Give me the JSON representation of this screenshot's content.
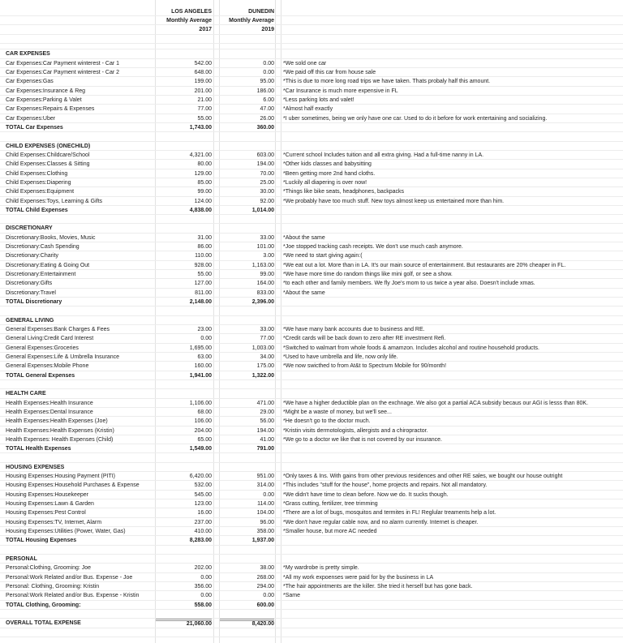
{
  "header": {
    "la": {
      "city": "LOS ANGELES",
      "label": "Monthly Average",
      "year": "2017"
    },
    "dunedin": {
      "city": "DUNEDIN",
      "label": "Monthly Average",
      "year": "2019"
    }
  },
  "sections": [
    {
      "title": "CAR EXPENSES",
      "items": [
        {
          "label": "Car Expenses:Car Payment winterest - Car 1",
          "la": "542.00",
          "dunedin": "0.00",
          "note": "*We sold one car"
        },
        {
          "label": "Car Expenses:Car Payment winterest - Car 2",
          "la": "648.00",
          "dunedin": "0.00",
          "note": "*We paid off this car from house sale"
        },
        {
          "label": "Car Expenses:Gas",
          "la": "199.00",
          "dunedin": "95.00",
          "note": "*This is due to more long road trips we have taken. Thats probaly half this amount."
        },
        {
          "label": "Car Expenses:Insurance & Reg",
          "la": "201.00",
          "dunedin": "186.00",
          "note": "*Car Insurance is much more expensive in FL"
        },
        {
          "label": "Car Expenses:Parking & Valet",
          "la": "21.00",
          "dunedin": "6.00",
          "note": "*Less parking lots and valet!"
        },
        {
          "label": "Car Expenses:Repairs & Expenses",
          "la": "77.00",
          "dunedin": "47.00",
          "note": "*Almost half exactly"
        },
        {
          "label": "Car Expenses:Uber",
          "la": "55.00",
          "dunedin": "26.00",
          "note": "*I uber sometimes, being we only have one car. Used to do it before for work entertaining and socializing."
        }
      ],
      "total": {
        "label": "TOTAL Car Expenses",
        "la": "1,743.00",
        "dunedin": "360.00"
      }
    },
    {
      "title": "CHILD EXPENSES (ONECHILD)",
      "items": [
        {
          "label": "Child Expenses:Childcare/School",
          "la": "4,321.00",
          "dunedin": "603.00",
          "note": "*Current school Includes tuition and all extra giving. Had a full-time nanny in LA."
        },
        {
          "label": "Child Expenses:Classes & Sitting",
          "la": "80.00",
          "dunedin": "194.00",
          "note": "*Other kids classes and babysitting"
        },
        {
          "label": "Child Expenses:Clothing",
          "la": "129.00",
          "dunedin": "70.00",
          "note": "*Been getting more 2nd hand cloths."
        },
        {
          "label": "Child Expenses:Diapering",
          "la": "85.00",
          "dunedin": "25.00",
          "note": "*Luckily all diapering is over now!"
        },
        {
          "label": "Child Expenses:Equipment",
          "la": "99.00",
          "dunedin": "30.00",
          "note": "*Things like bike seats, headphones, backpacks"
        },
        {
          "label": "Child Expenses:Toys, Learning & Gifts",
          "la": "124.00",
          "dunedin": "92.00",
          "note": "*We probably have too much stuff. New toys almost keep us entertained more than him."
        }
      ],
      "total": {
        "label": "TOTAL Child Expenses",
        "la": "4,838.00",
        "dunedin": "1,014.00"
      }
    },
    {
      "title": "DISCRETIONARY",
      "items": [
        {
          "label": "Discretionary:Books, Movies, Music",
          "la": "31.00",
          "dunedin": "33.00",
          "note": "*About the same"
        },
        {
          "label": "Discretionary:Cash Spending",
          "la": "86.00",
          "dunedin": "101.00",
          "note": "*Joe stopped tracking cash receipts. We don't use much cash anymore."
        },
        {
          "label": "Discretionary:Charity",
          "la": "110.00",
          "dunedin": "3.00",
          "note": "*We need to start giving again:("
        },
        {
          "label": "Discretionary:Eating & Going Out",
          "la": "928.00",
          "dunedin": "1,163.00",
          "note": "*We eat out a lot. More than in LA. It's our main source of entertainment. But restaurants are 20% cheaper in FL."
        },
        {
          "label": "Discretionary:Entertainment",
          "la": "55.00",
          "dunedin": "99.00",
          "note": "*We have more time do random things like mini golf, or see a show."
        },
        {
          "label": "Discretionary:Gifts",
          "la": "127.00",
          "dunedin": "164.00",
          "note": "*to each other and family members. We fly Joe's mom to us twice a year also. Doesn't include xmas."
        },
        {
          "label": "Discretionary:Travel",
          "la": "811.00",
          "dunedin": "833.00",
          "note": "*About the same"
        }
      ],
      "total": {
        "label": "TOTAL Discretionary",
        "la": "2,148.00",
        "dunedin": "2,396.00"
      }
    },
    {
      "title": "GENERAL LIVING",
      "items": [
        {
          "label": "General Expenses:Bank Charges & Fees",
          "la": "23.00",
          "dunedin": "33.00",
          "note": "*We have many bank accounts due to business and RE."
        },
        {
          "label": "General Living:Credit Card Interest",
          "la": "0.00",
          "dunedin": "77.00",
          "note": "*Credit cards will be back down to zero after RE investment Refi."
        },
        {
          "label": "General Expenses:Groceries",
          "la": "1,695.00",
          "dunedin": "1,003.00",
          "note": "*Switched to walmart from whole foods & amamzon. Includes alcohol and routine household products."
        },
        {
          "label": "General Expenses:Life & Umbrella Insurance",
          "la": "63.00",
          "dunedin": "34.00",
          "note": "*Used to have umbrella and life, now only life."
        },
        {
          "label": "General Expenses:Mobile Phone",
          "la": "160.00",
          "dunedin": "175.00",
          "note": "*We now swicthed to from At&t to Spectrum Mobile for 90/month!"
        }
      ],
      "total": {
        "label": "TOTAL General Expenses",
        "la": "1,941.00",
        "dunedin": "1,322.00"
      }
    },
    {
      "title": "HEALTH CARE",
      "items": [
        {
          "label": "Health Expenses:Health Insurance",
          "la": "1,106.00",
          "dunedin": "471.00",
          "note": "*We have a higher deductible plan on the exchnage. We also got a partial ACA subsidy becaus our AGI is lesss than 80K."
        },
        {
          "label": "Health Expenses:Dental Insurance",
          "la": "68.00",
          "dunedin": "29.00",
          "note": "*Might be a waste of money, but we'll see..."
        },
        {
          "label": "Health Expenses:Health Expenses (Joe)",
          "la": "106.00",
          "dunedin": "56.00",
          "note": "*He doesn't go to the doctor much."
        },
        {
          "label": "Health Expenses:Health Expenses (Kristin)",
          "la": "204.00",
          "dunedin": "194.00",
          "note": "*Kristin visits dermotologists, allergists and a chiropractor."
        },
        {
          "label": "Health Expenses: Health Expenses (Child)",
          "la": "65.00",
          "dunedin": "41.00",
          "note": "*We go to a doctor we like that is not covered by our insurance."
        }
      ],
      "total": {
        "label": "TOTAL Health Expenses",
        "la": "1,549.00",
        "dunedin": "791.00"
      }
    },
    {
      "title": "HOUSING EXPENSES",
      "items": [
        {
          "label": "Housing Expenses:Housing Payment (PITI)",
          "la": "6,420.00",
          "dunedin": "951.00",
          "note": "*Only taxes & Ins. With gains from other previous residences and other RE sales, we bought our house outright"
        },
        {
          "label": "Housing Expenses:Household Purchases & Expense",
          "la": "532.00",
          "dunedin": "314.00",
          "note": "*This includes \"stuff for the house\", home projects and repairs. Not all mandatory."
        },
        {
          "label": "Housing Expenses:Housekeeper",
          "la": "545.00",
          "dunedin": "0.00",
          "note": "*We didn't have time to clean before. Now we do. It sucks though."
        },
        {
          "label": "Housing Expenses:Lawn & Garden",
          "la": "123.00",
          "dunedin": "114.00",
          "note": "*Grass cutting, fertilizer, tree trimming"
        },
        {
          "label": "Housing Expenses:Pest Control",
          "la": "16.00",
          "dunedin": "104.00",
          "note": "*There are a lot of bugs, mosquitos and termites in FL! Reglular treaments help a lot."
        },
        {
          "label": "Housing Expenses:TV, Internet, Alarm",
          "la": "237.00",
          "dunedin": "96.00",
          "note": "*We don't have regular cable now, and no alarm currently. Internet is cheaper."
        },
        {
          "label": "Housing Expenses:Utilities (Power, Water, Gas)",
          "la": "410.00",
          "dunedin": "358.00",
          "note": "*Smaller house, but more AC needed"
        }
      ],
      "total": {
        "label": "TOTAL Housing Expenses",
        "la": "8,283.00",
        "dunedin": "1,937.00"
      }
    },
    {
      "title": "PERSONAL",
      "items": [
        {
          "label": "Personal:Clothing, Grooming: Joe",
          "la": "202.00",
          "dunedin": "38.00",
          "note": "*My wardrobe is pretty simple."
        },
        {
          "label": "Personal:Work Related and/or Bus. Expense - Joe",
          "la": "0.00",
          "dunedin": "268.00",
          "note": "*All my work expoenses were paid for by the business in LA"
        },
        {
          "label": "Personal: Clothing, Grooming: Kristin",
          "la": "356.00",
          "dunedin": "294.00",
          "note": "*The hair appointments are the killer. She tried it herself but has gone back."
        },
        {
          "label": "Personal:Work Related and/or Bus. Expense - Kristin",
          "la": "0.00",
          "dunedin": "0.00",
          "note": "*Same"
        }
      ],
      "total": {
        "label": "TOTAL Clothing, Grooming:",
        "la": "558.00",
        "dunedin": "600.00"
      }
    }
  ],
  "overall": {
    "label": "OVERALL TOTAL EXPENSE",
    "la": "21,060.00",
    "dunedin": "8,420.00"
  }
}
